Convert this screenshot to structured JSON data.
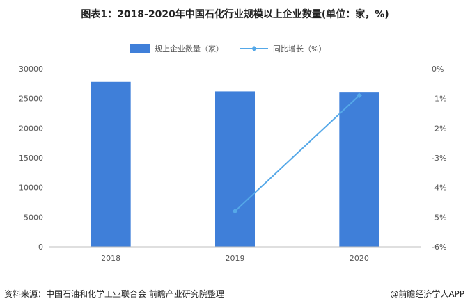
{
  "chart_data": {
    "type": "bar",
    "title": "图表1：2018-2020年中国石化行业规模以上企业数量(单位：家，%)",
    "categories": [
      "2018",
      "2019",
      "2020"
    ],
    "series": [
      {
        "name": "规上企业数量（家）",
        "kind": "bar",
        "axis": "left",
        "values": [
          27800,
          26200,
          26000
        ]
      },
      {
        "name": "同比增长（%）",
        "kind": "line",
        "axis": "right",
        "values": [
          null,
          -4.8,
          -0.9
        ]
      }
    ],
    "y_left": {
      "ylim": [
        0,
        30000
      ],
      "ticks": [
        "0",
        "5000",
        "10000",
        "15000",
        "20000",
        "25000",
        "30000"
      ]
    },
    "y_right": {
      "ylim": [
        -6,
        0
      ],
      "ticks": [
        "-6%",
        "-5%",
        "-4%",
        "-3%",
        "-2%",
        "-1%",
        "0%"
      ]
    },
    "legend_position": "top",
    "grid": false,
    "colors": {
      "bar": "#3f7fd9",
      "line": "#55a8e8"
    }
  },
  "footer": {
    "source": "资料来源：中国石油和化学工业联合会 前瞻产业研究院整理",
    "brand_symbol": "@",
    "brand_text": "前瞻经济学人APP"
  }
}
